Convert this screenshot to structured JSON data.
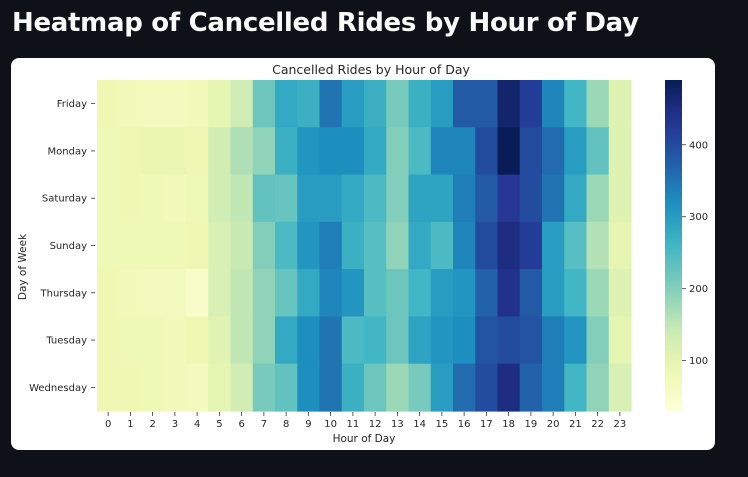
{
  "page": {
    "title": "Heatmap of Cancelled Rides by Hour of Day"
  },
  "chart_data": {
    "type": "heatmap",
    "title": "Cancelled Rides by Hour of Day",
    "xlabel": "Hour of Day",
    "ylabel": "Day of Week",
    "x": [
      "0",
      "1",
      "2",
      "3",
      "4",
      "5",
      "6",
      "7",
      "8",
      "9",
      "10",
      "11",
      "12",
      "13",
      "14",
      "15",
      "16",
      "17",
      "18",
      "19",
      "20",
      "21",
      "22",
      "23"
    ],
    "y": [
      "Friday",
      "Monday",
      "Saturday",
      "Sunday",
      "Thursday",
      "Tuesday",
      "Wednesday"
    ],
    "values": [
      [
        85,
        75,
        70,
        70,
        75,
        100,
        135,
        220,
        280,
        270,
        350,
        300,
        270,
        210,
        270,
        300,
        380,
        380,
        470,
        420,
        330,
        260,
        180,
        110
      ],
      [
        80,
        85,
        90,
        90,
        85,
        130,
        165,
        190,
        270,
        310,
        320,
        320,
        280,
        200,
        250,
        330,
        330,
        400,
        490,
        400,
        360,
        300,
        230,
        110
      ],
      [
        80,
        85,
        80,
        75,
        80,
        130,
        150,
        230,
        225,
        300,
        300,
        280,
        250,
        200,
        290,
        290,
        340,
        380,
        430,
        400,
        350,
        280,
        180,
        110
      ],
      [
        80,
        80,
        80,
        80,
        85,
        120,
        140,
        200,
        250,
        310,
        340,
        270,
        240,
        190,
        280,
        250,
        330,
        400,
        450,
        420,
        300,
        240,
        160,
        100
      ],
      [
        85,
        75,
        70,
        70,
        55,
        120,
        150,
        190,
        225,
        280,
        330,
        310,
        240,
        220,
        260,
        300,
        310,
        370,
        440,
        380,
        300,
        260,
        180,
        110
      ],
      [
        85,
        80,
        80,
        75,
        85,
        105,
        150,
        190,
        280,
        320,
        350,
        250,
        260,
        220,
        290,
        310,
        320,
        390,
        400,
        390,
        340,
        310,
        200,
        100
      ],
      [
        85,
        85,
        80,
        75,
        70,
        100,
        130,
        210,
        230,
        320,
        350,
        270,
        220,
        180,
        210,
        300,
        360,
        400,
        450,
        370,
        340,
        260,
        190,
        120
      ]
    ],
    "colorbar": {
      "ticks": [
        100,
        200,
        300,
        400
      ],
      "range": [
        30,
        490
      ]
    },
    "colormap": "YlGnBu",
    "grid": false,
    "legend": "colorbar-right"
  }
}
